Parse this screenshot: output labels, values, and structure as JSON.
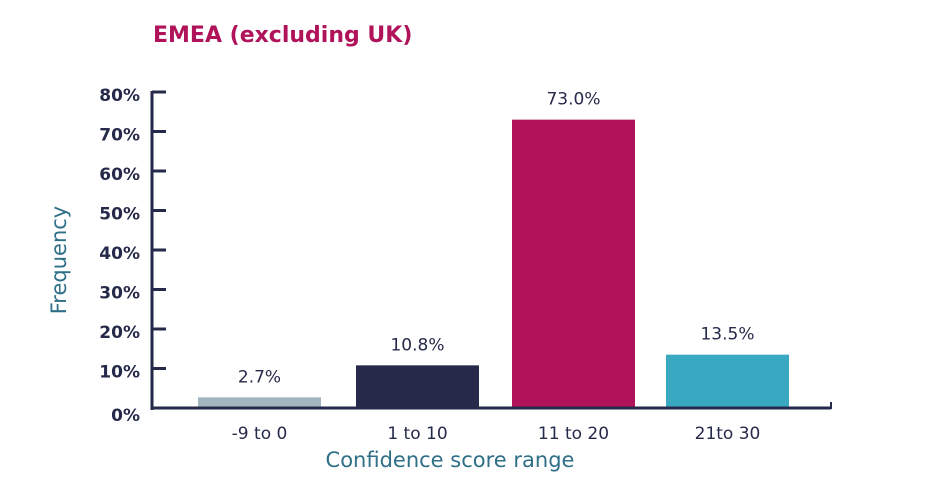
{
  "chart_data": {
    "type": "bar",
    "title": "EMEA (excluding UK)",
    "xlabel": "Confidence score range",
    "ylabel": "Frequency",
    "categories": [
      "-9 to 0",
      "1 to 10",
      "11 to 20",
      "21to 30"
    ],
    "values": [
      2.7,
      10.8,
      73.0,
      13.5
    ],
    "data_labels": [
      "2.7%",
      "10.8%",
      "73.0%",
      "13.5%"
    ],
    "colors": [
      "#a3b6bf",
      "#27294a",
      "#b0135a",
      "#39a8c1"
    ],
    "ylim": [
      0,
      80
    ],
    "yticks": [
      0,
      10,
      20,
      30,
      40,
      50,
      60,
      70,
      80
    ],
    "ytick_labels": [
      "0%",
      "10%",
      "20%",
      "30%",
      "40%",
      "50%",
      "60%",
      "70%",
      "80%"
    ],
    "grid": false,
    "legend": "none"
  }
}
